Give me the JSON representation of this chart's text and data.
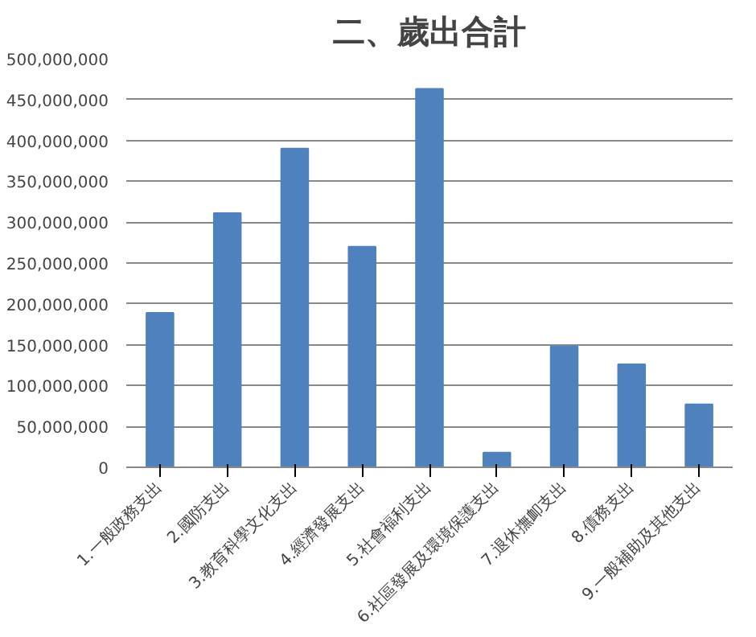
{
  "chart_data": {
    "type": "bar",
    "title": "二、歲出合計",
    "categories": [
      "1.一般政務支出",
      "2.國防支出",
      "3.教育科學文化支出",
      "4.經濟發展支出",
      "5.社會福利支出",
      "6.社區發展及環境保護支出",
      "7.退休撫卹支出",
      "8.債務支出",
      "9.一般補助及其他支出"
    ],
    "values": [
      189000000,
      311000000,
      390000000,
      270000000,
      463000000,
      18000000,
      148000000,
      126000000,
      77000000
    ],
    "color": "#4f81bd",
    "ylim": [
      0,
      500000000
    ],
    "yticks": [
      0,
      {
        "value": 50000000,
        "label": "50,000,000"
      },
      {
        "value": 100000000,
        "label": "100,000,000"
      },
      {
        "value": 150000000,
        "label": "150,000,000"
      },
      {
        "value": 200000000,
        "label": "200,000,000"
      },
      {
        "value": 250000000,
        "label": "250,000,000"
      },
      {
        "value": 300000000,
        "label": "300,000,000"
      },
      {
        "value": 350000000,
        "label": "350,000,000"
      },
      {
        "value": 400000000,
        "label": "400,000,000"
      },
      {
        "value": 450000000,
        "label": "450,000,000"
      },
      {
        "value": 500000000,
        "label": "500,000,000"
      }
    ],
    "grid": "y"
  }
}
